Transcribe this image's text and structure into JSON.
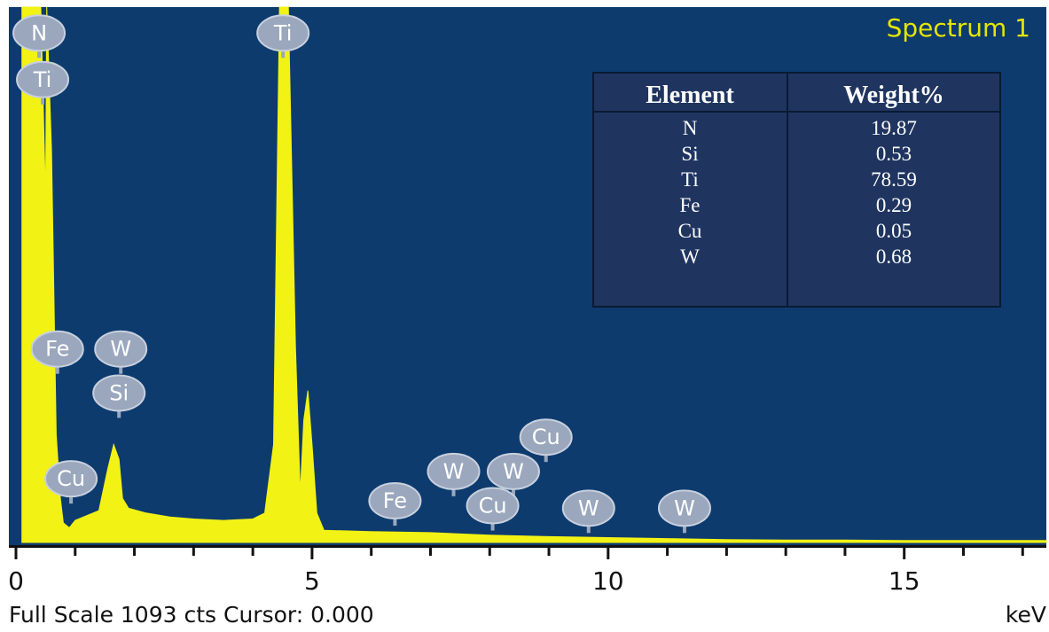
{
  "chart_data": {
    "type": "area",
    "title": "Spectrum 1",
    "xlabel": "keV",
    "xlim": [
      0,
      17.4
    ],
    "ylim": [
      0,
      1093
    ],
    "x_ticks": [
      0,
      5,
      10,
      15
    ],
    "x_tick_labels": [
      "0",
      "5",
      "10",
      "15"
    ],
    "grid": false,
    "colors": {
      "plot_bg": "#0d3b6e",
      "spectrum": "#f2f214",
      "title": "#e6e600",
      "marker": "#9aa7bd",
      "table_bg": "#1f3560"
    },
    "series": [
      {
        "points": [
          [
            0.1,
            1093
          ],
          [
            0.32,
            1093
          ],
          [
            0.42,
            1093
          ],
          [
            0.5,
            700
          ],
          [
            0.52,
            1093
          ],
          [
            0.6,
            800
          ],
          [
            0.68,
            220
          ],
          [
            0.75,
            90
          ],
          [
            0.8,
            40
          ],
          [
            0.9,
            30
          ],
          [
            1.0,
            45
          ],
          [
            1.2,
            55
          ],
          [
            1.4,
            65
          ],
          [
            1.55,
            150
          ],
          [
            1.65,
            200
          ],
          [
            1.74,
            170
          ],
          [
            1.8,
            90
          ],
          [
            1.9,
            70
          ],
          [
            2.2,
            60
          ],
          [
            2.6,
            52
          ],
          [
            3.0,
            48
          ],
          [
            3.5,
            45
          ],
          [
            4.0,
            48
          ],
          [
            4.2,
            60
          ],
          [
            4.35,
            200
          ],
          [
            4.45,
            1093
          ],
          [
            4.6,
            1093
          ],
          [
            4.72,
            400
          ],
          [
            4.8,
            100
          ],
          [
            4.86,
            250
          ],
          [
            4.93,
            310
          ],
          [
            5.0,
            200
          ],
          [
            5.08,
            60
          ],
          [
            5.2,
            25
          ],
          [
            6.0,
            22
          ],
          [
            7.0,
            20
          ],
          [
            8.0,
            15
          ],
          [
            9.0,
            12
          ],
          [
            10.0,
            10
          ],
          [
            11.0,
            8
          ],
          [
            12.0,
            6
          ],
          [
            13.0,
            5
          ],
          [
            14.0,
            5
          ],
          [
            15.0,
            4
          ],
          [
            17.4,
            4
          ]
        ]
      }
    ],
    "element_markers": [
      {
        "label": "N",
        "x": 0.39,
        "y": 1040
      },
      {
        "label": "Ti",
        "x": 0.45,
        "y": 945
      },
      {
        "label": "Ti",
        "x": 4.51,
        "y": 1040
      },
      {
        "label": "Fe",
        "x": 0.7,
        "y": 395
      },
      {
        "label": "W",
        "x": 1.77,
        "y": 395
      },
      {
        "label": "Si",
        "x": 1.74,
        "y": 305
      },
      {
        "label": "Cu",
        "x": 0.93,
        "y": 130
      },
      {
        "label": "Cu",
        "x": 8.95,
        "y": 215
      },
      {
        "label": "W",
        "x": 7.39,
        "y": 145
      },
      {
        "label": "W",
        "x": 8.4,
        "y": 145
      },
      {
        "label": "Fe",
        "x": 6.4,
        "y": 85
      },
      {
        "label": "Cu",
        "x": 8.05,
        "y": 75
      },
      {
        "label": "W",
        "x": 9.67,
        "y": 70
      },
      {
        "label": "W",
        "x": 11.29,
        "y": 70
      }
    ]
  },
  "table": {
    "headers": [
      "Element",
      "Weight%"
    ],
    "rows": [
      [
        "N",
        "19.87"
      ],
      [
        "Si",
        "0.53"
      ],
      [
        "Ti",
        "78.59"
      ],
      [
        "Fe",
        "0.29"
      ],
      [
        "Cu",
        "0.05"
      ],
      [
        "W",
        "0.68"
      ]
    ]
  },
  "footer": {
    "full_scale": "Full Scale 1093 cts Cursor: 0.000",
    "unit": "keV"
  }
}
